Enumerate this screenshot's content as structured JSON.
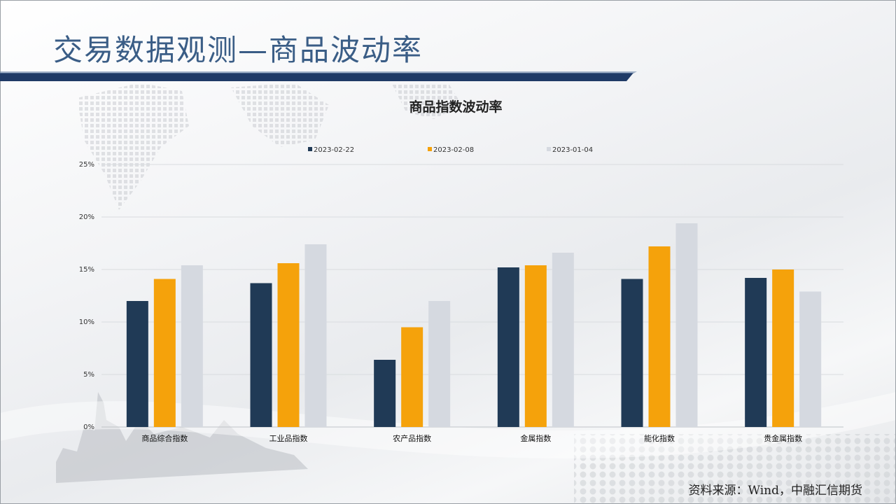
{
  "slide": {
    "title": "交易数据观测—商品波动率",
    "source": "资料来源：Wind，中融汇信期货"
  },
  "chart_data": {
    "type": "bar",
    "title": "商品指数波动率",
    "categories": [
      "商品综合指数",
      "工业品指数",
      "农产品指数",
      "金属指数",
      "能化指数",
      "贵金属指数"
    ],
    "series": [
      {
        "name": "2023-02-22",
        "color": "#203a56",
        "values": [
          12.0,
          13.7,
          6.4,
          15.2,
          14.1,
          14.2
        ]
      },
      {
        "name": "2023-02-08",
        "color": "#f5a20b",
        "values": [
          14.1,
          15.6,
          9.5,
          15.4,
          17.2,
          15.0
        ]
      },
      {
        "name": "2023-01-04",
        "color": "#d5d9e0",
        "values": [
          15.4,
          17.4,
          12.0,
          16.6,
          19.4,
          12.9
        ]
      }
    ],
    "yticks": [
      "0%",
      "5%",
      "10%",
      "15%",
      "20%",
      "25%"
    ],
    "ylim": [
      0,
      25
    ],
    "grid": true,
    "legend": "top-center"
  }
}
